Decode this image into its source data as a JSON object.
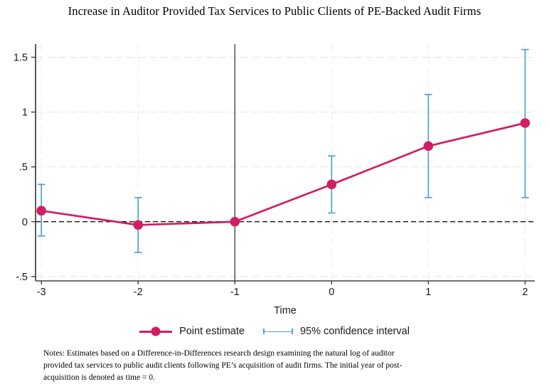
{
  "title": "Increase in Auditor Provided Tax Services to Public Clients of PE-Backed Audit Firms",
  "chart_data": {
    "type": "line",
    "title": "Increase in Auditor Provided Tax Services to Public Clients of PE-Backed Audit Firms",
    "xlabel": "Time",
    "ylabel": "",
    "x": [
      -3,
      -2,
      -1,
      0,
      1,
      2
    ],
    "series": [
      {
        "name": "Point estimate",
        "values": [
          0.1,
          -0.03,
          0.0,
          0.34,
          0.69,
          0.9
        ],
        "ci_low": [
          -0.13,
          -0.28,
          null,
          0.08,
          0.22,
          0.22
        ],
        "ci_high": [
          0.34,
          0.22,
          null,
          0.6,
          1.16,
          1.57
        ]
      }
    ],
    "x_ticks": [
      -3,
      -2,
      -1,
      0,
      1,
      2
    ],
    "x_tick_labels": [
      "-3",
      "-2",
      "-1",
      "0",
      "1",
      "2"
    ],
    "y_ticks": [
      -0.5,
      0,
      0.5,
      1,
      1.5
    ],
    "y_tick_labels": [
      "-.5",
      "0",
      ".5",
      "1",
      "1.5"
    ],
    "xlim": [
      -3.06,
      2.1
    ],
    "ylim": [
      -0.54,
      1.62
    ],
    "reference_vline_x": -1,
    "reference_hline_y": 0,
    "grid": true,
    "legend_position": "bottom",
    "colors": {
      "point_estimate": "#D01E63",
      "confidence_interval": "#4FA0D8",
      "grid": "#E4E4E4",
      "grid_vertical": "#ECECEC",
      "zero_line": "#000000",
      "reference_line": "#3A3A3A",
      "x_axis": "#707070",
      "y_axis": "#161616",
      "tick": "#333333",
      "tick_label": "#1A1A1A"
    }
  },
  "legend": {
    "point_label": "Point estimate",
    "ci_label": "95% confidence interval"
  },
  "notes": "Notes: Estimates based on a Difference-in-Differences research design examining the natural log of auditor provided tax services to public audit clients following PE’s acquisition of audit firms. The initial year of post-acquisition is denoted as time = 0."
}
